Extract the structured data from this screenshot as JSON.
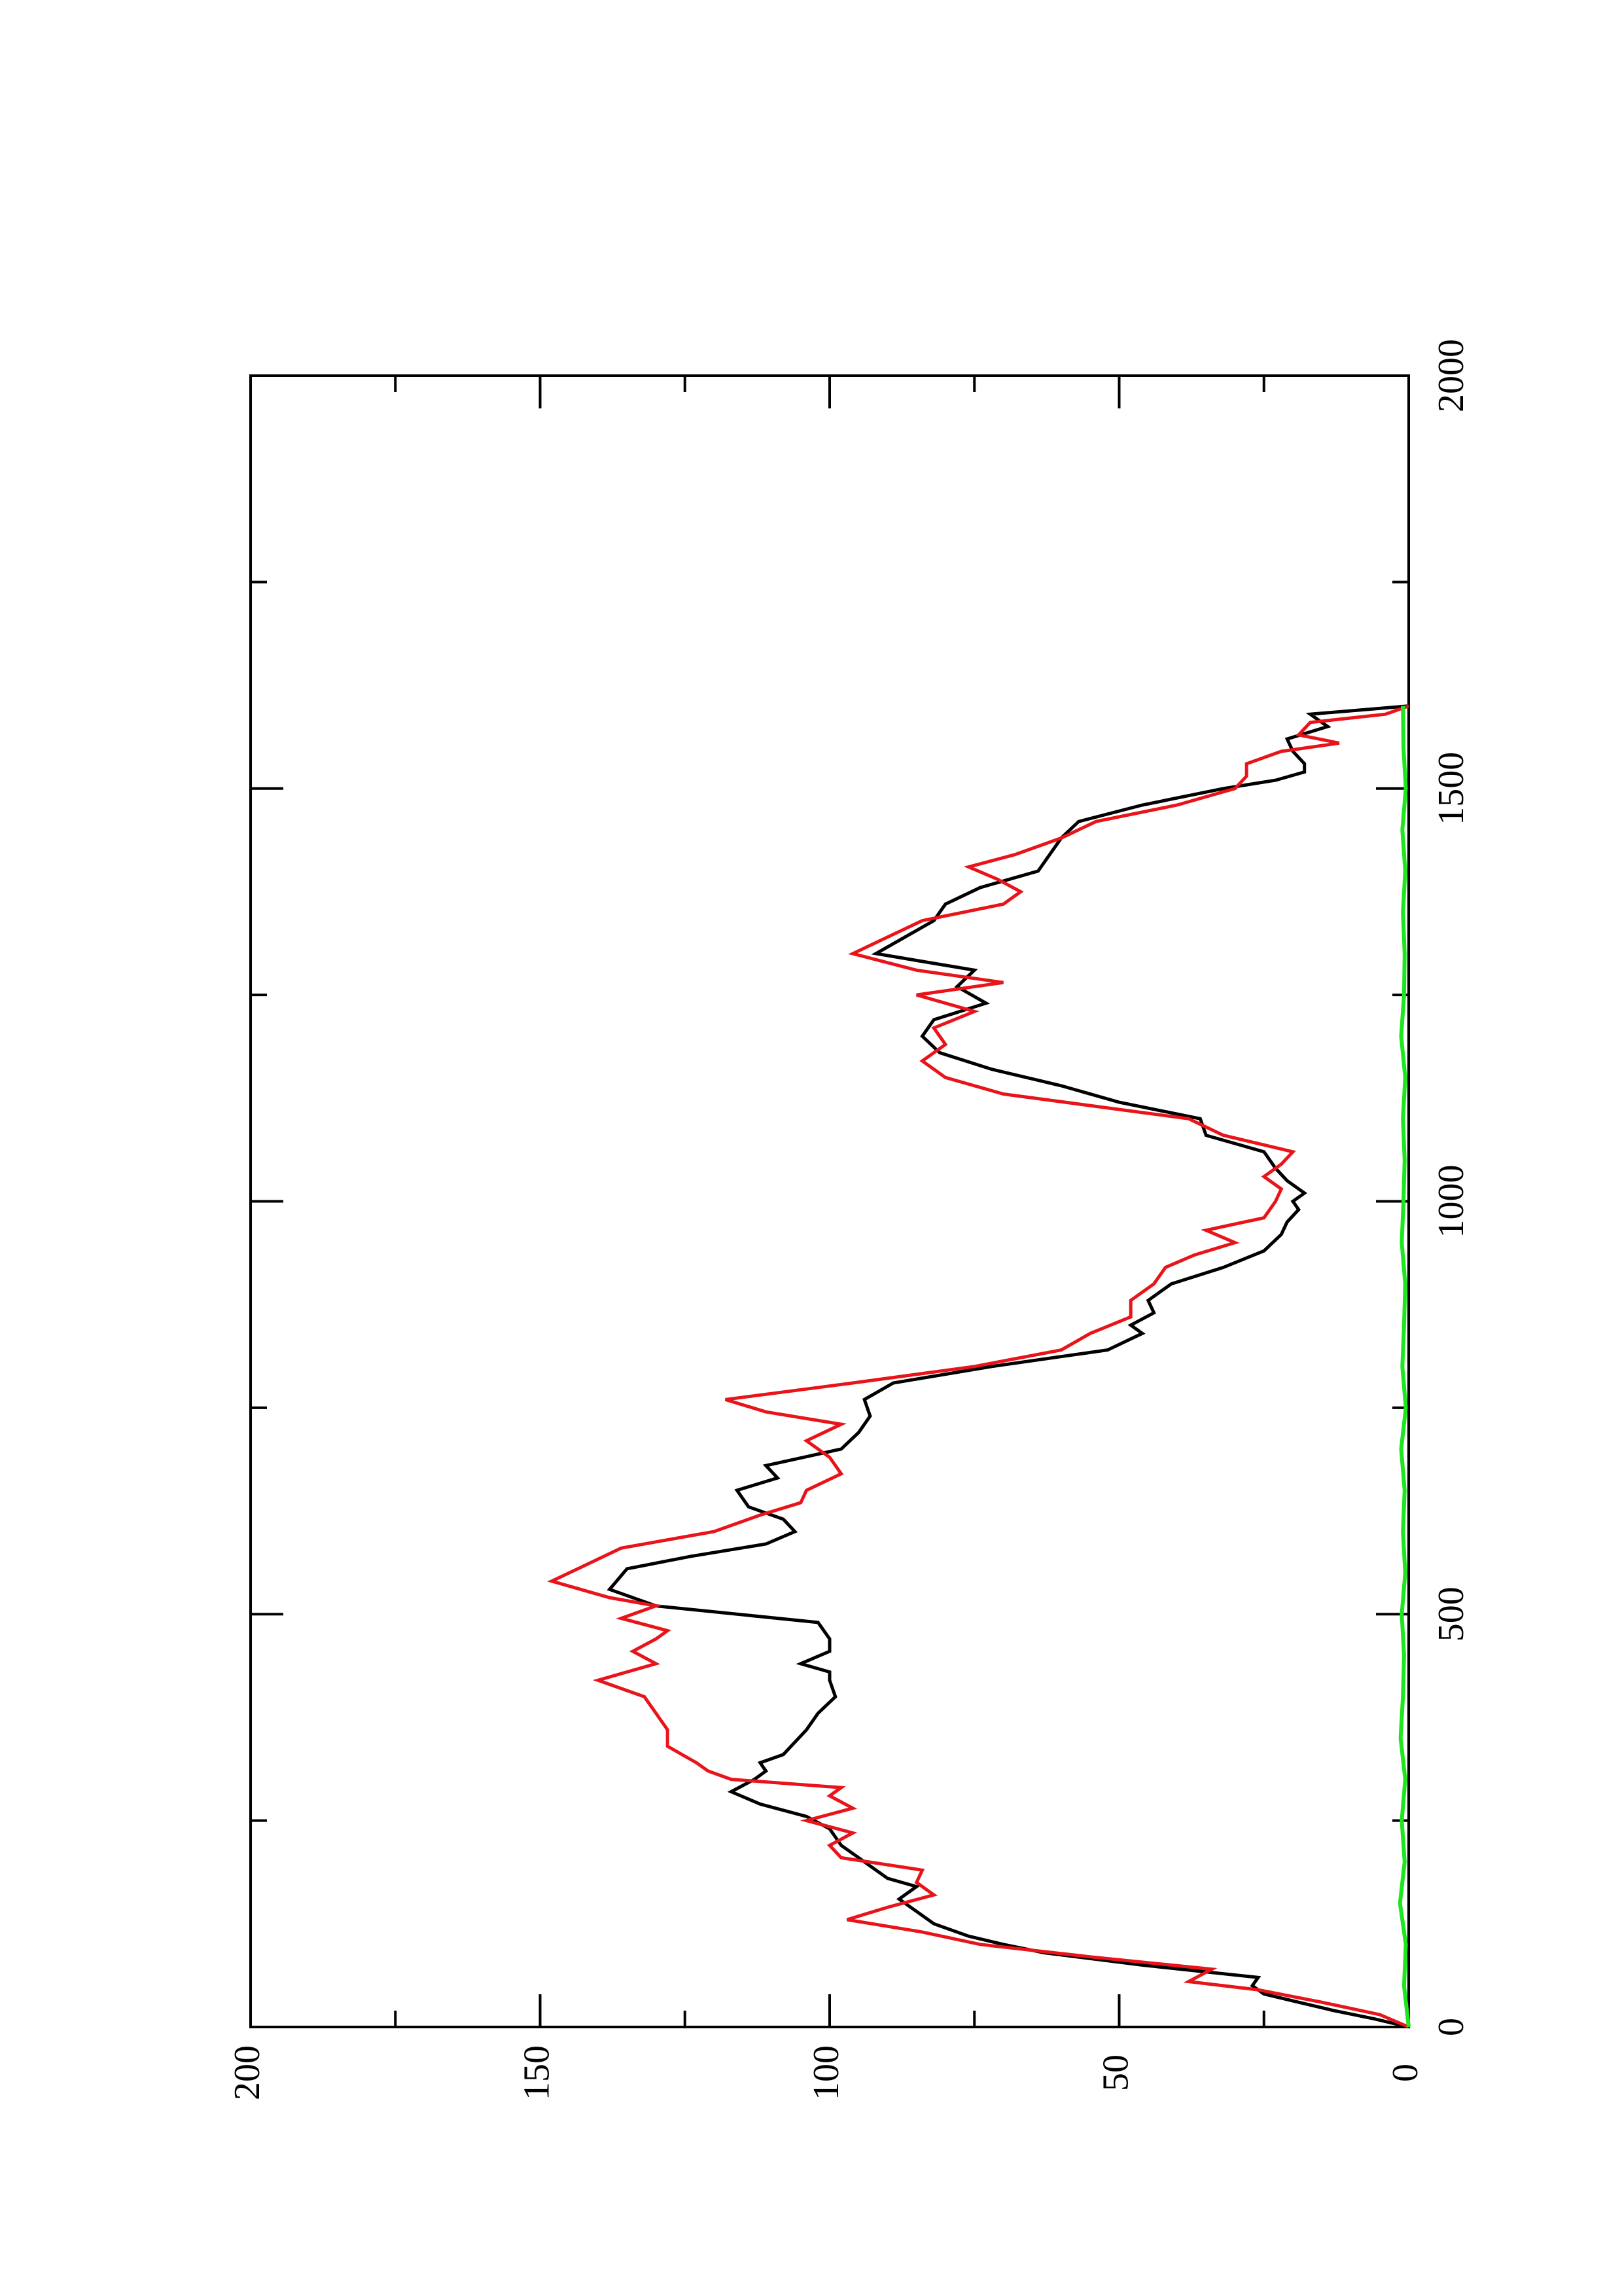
{
  "chart_data": {
    "type": "line",
    "orientation": "rotated-90",
    "title": "",
    "xlabel": "",
    "ylabel": "",
    "xlim": [
      0,
      2000
    ],
    "ylim": [
      0,
      200
    ],
    "x_ticks": [
      "0",
      "500",
      "1000",
      "1500",
      "2000"
    ],
    "y_ticks": [
      "0",
      "50",
      "100",
      "150",
      "200"
    ],
    "grid": false,
    "legend": "none",
    "series": [
      {
        "color": "#000000",
        "x": [
          0,
          10,
          20,
          30,
          40,
          50,
          60,
          75,
          90,
          100,
          110,
          125,
          140,
          155,
          170,
          180,
          190,
          205,
          220,
          240,
          255,
          270,
          285,
          300,
          310,
          320,
          330,
          345,
          360,
          380,
          400,
          420,
          430,
          440,
          455,
          470,
          490,
          510,
          530,
          555,
          570,
          585,
          600,
          615,
          630,
          650,
          665,
          680,
          700,
          720,
          740,
          760,
          780,
          800,
          820,
          840,
          850,
          865,
          880,
          900,
          920,
          940,
          960,
          975,
          990,
          1000,
          1010,
          1025,
          1040,
          1060,
          1080,
          1100,
          1120,
          1140,
          1160,
          1180,
          1200,
          1220,
          1240,
          1260,
          1280,
          1300,
          1320,
          1340,
          1360,
          1380,
          1400,
          1420,
          1440,
          1460,
          1480,
          1500,
          1510,
          1520,
          1530,
          1545,
          1560,
          1575,
          1590,
          1600
        ],
        "values": [
          0,
          6,
          13,
          19,
          25,
          27,
          26,
          46,
          63,
          70,
          76,
          82,
          85,
          88,
          85,
          90,
          92,
          95,
          98,
          100,
          104,
          112,
          117,
          113,
          111,
          112,
          108,
          106,
          104,
          102,
          99,
          100,
          100,
          105,
          100,
          100,
          102,
          130,
          138,
          135,
          124,
          111,
          106,
          108,
          114,
          116,
          109,
          111,
          98,
          95,
          93,
          94,
          89,
          72,
          52,
          46,
          48,
          44,
          45,
          41,
          32,
          25,
          22,
          21,
          19,
          20,
          18,
          21,
          23,
          25,
          35,
          36,
          50,
          60,
          72,
          81,
          84,
          82,
          73,
          78,
          75,
          92,
          87,
          82,
          80,
          74,
          64,
          62,
          60,
          57,
          46,
          32,
          23,
          18,
          18,
          20,
          21,
          14,
          17,
          0
        ]
      },
      {
        "color": "#e8141a",
        "x": [
          0,
          15,
          30,
          45,
          55,
          70,
          85,
          100,
          115,
          130,
          145,
          160,
          175,
          190,
          205,
          220,
          235,
          250,
          265,
          280,
          290,
          300,
          310,
          320,
          340,
          360,
          380,
          400,
          420,
          440,
          455,
          470,
          480,
          495,
          510,
          520,
          540,
          560,
          580,
          600,
          620,
          635,
          650,
          670,
          690,
          710,
          730,
          745,
          760,
          780,
          800,
          820,
          840,
          860,
          880,
          900,
          920,
          935,
          950,
          965,
          980,
          1000,
          1015,
          1030,
          1045,
          1060,
          1080,
          1100,
          1130,
          1150,
          1170,
          1190,
          1210,
          1230,
          1250,
          1265,
          1280,
          1300,
          1320,
          1340,
          1360,
          1375,
          1390,
          1405,
          1420,
          1440,
          1460,
          1480,
          1500,
          1515,
          1530,
          1545,
          1555,
          1565,
          1580,
          1590,
          1600
        ],
        "values": [
          0,
          5,
          15,
          26,
          38,
          34,
          55,
          74,
          84,
          97,
          90,
          82,
          85,
          84,
          98,
          100,
          96,
          104,
          96,
          100,
          98,
          117,
          121,
          123,
          128,
          128,
          130,
          132,
          140,
          130,
          134,
          130,
          128,
          136,
          130,
          138,
          148,
          142,
          136,
          120,
          112,
          105,
          104,
          98,
          100,
          104,
          98,
          111,
          118,
          96,
          75,
          60,
          55,
          48,
          48,
          44,
          42,
          37,
          30,
          35,
          25,
          23,
          22,
          25,
          22,
          20,
          32,
          38,
          70,
          80,
          84,
          80,
          82,
          75,
          85,
          70,
          85,
          96,
          90,
          84,
          70,
          67,
          71,
          76,
          68,
          60,
          54,
          40,
          30,
          28,
          28,
          22,
          12,
          19,
          17,
          4,
          0
        ]
      },
      {
        "color": "#1ee61e",
        "x": [
          0,
          50,
          100,
          150,
          200,
          250,
          300,
          350,
          400,
          450,
          500,
          550,
          600,
          650,
          700,
          750,
          800,
          850,
          900,
          950,
          1000,
          1050,
          1100,
          1150,
          1200,
          1250,
          1300,
          1350,
          1400,
          1450,
          1500,
          1550,
          1600
        ],
        "values": [
          0,
          0.8,
          0.5,
          1.5,
          0.7,
          1.2,
          0.6,
          1.4,
          1.0,
          0.8,
          1.2,
          0.6,
          1.0,
          0.7,
          1.3,
          0.5,
          1.1,
          0.8,
          0.6,
          1.2,
          0.9,
          0.7,
          1.0,
          0.6,
          1.3,
          0.8,
          0.7,
          1.0,
          0.6,
          1.1,
          0.5,
          0.9,
          1.0
        ]
      }
    ]
  }
}
